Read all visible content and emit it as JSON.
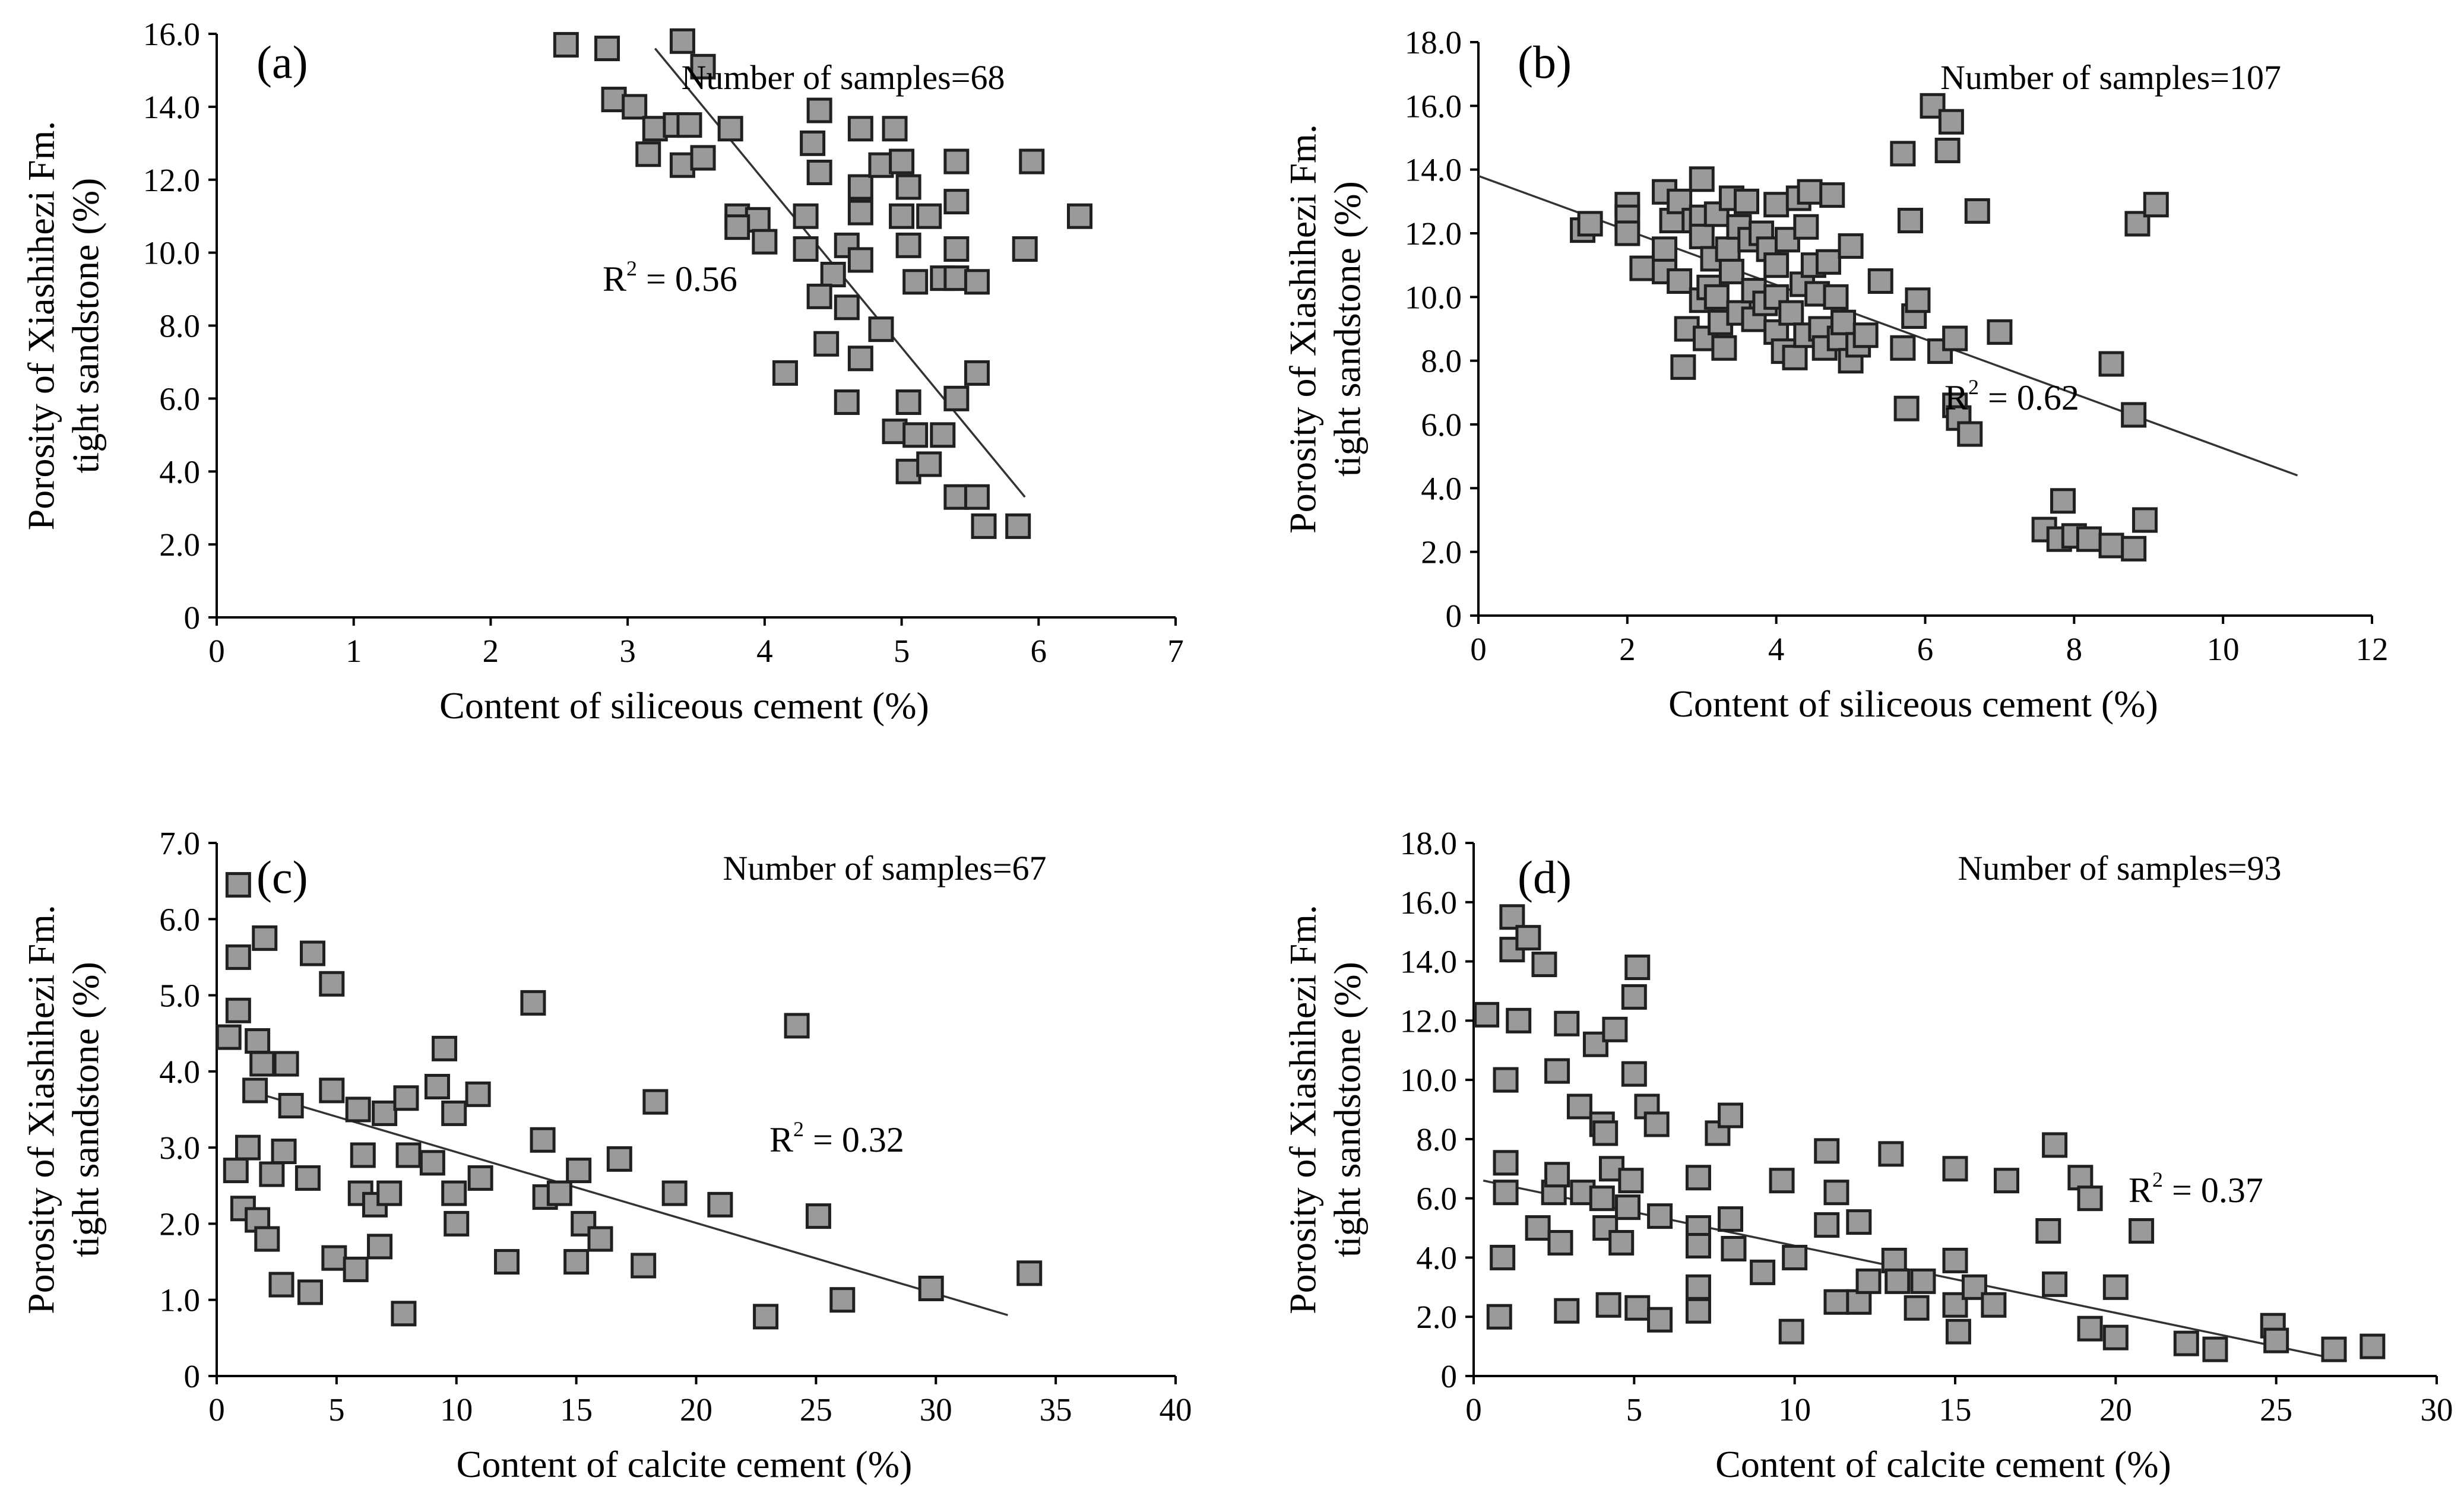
{
  "chart_data": [
    {
      "type": "scatter",
      "panel": "(a)",
      "xlabel": "Content of siliceous cement (%)",
      "ylabel_lines": [
        "Porosity of Xiashihezi Fm.",
        "tight sandstone (%)"
      ],
      "xlim": [
        0,
        7
      ],
      "ylim": [
        0,
        16
      ],
      "xticks": [
        "0",
        "1",
        "2",
        "3",
        "4",
        "5",
        "6",
        "7"
      ],
      "yticks": [
        "0",
        "2.0",
        "4.0",
        "6.0",
        "8.0",
        "10.0",
        "12.0",
        "14.0",
        "16.0"
      ],
      "annotation": "Number of samples=68",
      "r2_text": "R",
      "r2_sup": "2",
      "r2_value": " = 0.56",
      "trendline": [
        [
          3.2,
          15.6
        ],
        [
          5.9,
          3.3
        ]
      ],
      "points": [
        [
          2.55,
          15.7
        ],
        [
          2.85,
          15.6
        ],
        [
          3.4,
          15.8
        ],
        [
          3.55,
          15.1
        ],
        [
          2.9,
          14.2
        ],
        [
          3.05,
          14.0
        ],
        [
          3.2,
          13.4
        ],
        [
          3.35,
          13.5
        ],
        [
          3.45,
          13.5
        ],
        [
          3.75,
          13.4
        ],
        [
          3.15,
          12.7
        ],
        [
          3.4,
          12.4
        ],
        [
          3.55,
          12.6
        ],
        [
          3.8,
          11.0
        ],
        [
          3.95,
          10.9
        ],
        [
          3.8,
          10.7
        ],
        [
          4.0,
          10.3
        ],
        [
          4.3,
          11.0
        ],
        [
          4.35,
          13.0
        ],
        [
          4.4,
          13.9
        ],
        [
          4.4,
          12.2
        ],
        [
          4.3,
          10.1
        ],
        [
          4.6,
          10.2
        ],
        [
          4.5,
          9.4
        ],
        [
          4.4,
          8.8
        ],
        [
          4.45,
          7.5
        ],
        [
          4.6,
          8.5
        ],
        [
          4.7,
          9.8
        ],
        [
          4.7,
          11.1
        ],
        [
          4.7,
          11.8
        ],
        [
          4.7,
          13.4
        ],
        [
          4.85,
          12.4
        ],
        [
          4.95,
          13.4
        ],
        [
          5.0,
          12.5
        ],
        [
          5.0,
          11.0
        ],
        [
          5.05,
          11.8
        ],
        [
          5.2,
          11.0
        ],
        [
          5.05,
          10.2
        ],
        [
          5.1,
          9.2
        ],
        [
          5.3,
          9.3
        ],
        [
          5.4,
          9.3
        ],
        [
          5.4,
          10.1
        ],
        [
          5.4,
          11.4
        ],
        [
          5.4,
          12.5
        ],
        [
          5.55,
          9.2
        ],
        [
          4.85,
          7.9
        ],
        [
          4.7,
          7.1
        ],
        [
          4.6,
          5.9
        ],
        [
          4.15,
          6.7
        ],
        [
          5.05,
          5.9
        ],
        [
          5.4,
          6.0
        ],
        [
          5.55,
          6.7
        ],
        [
          4.95,
          5.1
        ],
        [
          5.1,
          5.0
        ],
        [
          5.3,
          5.0
        ],
        [
          5.05,
          4.0
        ],
        [
          5.2,
          4.2
        ],
        [
          5.4,
          3.3
        ],
        [
          5.55,
          3.3
        ],
        [
          5.6,
          2.5
        ],
        [
          5.85,
          2.5
        ],
        [
          5.9,
          10.1
        ],
        [
          5.95,
          12.5
        ],
        [
          6.3,
          11.0
        ]
      ]
    },
    {
      "type": "scatter",
      "panel": "(b)",
      "xlabel": "Content of siliceous cement (%)",
      "ylabel_lines": [
        "Porosity of Xiashihezi Fm.",
        "tight sandstone (%)"
      ],
      "xlim": [
        0,
        12
      ],
      "ylim": [
        0,
        18
      ],
      "xticks": [
        "0",
        "2",
        "4",
        "6",
        "8",
        "10",
        "12"
      ],
      "yticks": [
        "0",
        "2.0",
        "4.0",
        "6.0",
        "8.0",
        "10.0",
        "12.0",
        "14.0",
        "16.0",
        "18.0"
      ],
      "annotation": "Number of samples=107",
      "r2_text": "R",
      "r2_sup": "2",
      "r2_value": " = 0.62",
      "trendline": [
        [
          0,
          13.8
        ],
        [
          11.0,
          4.4
        ]
      ],
      "points": [
        [
          1.4,
          12.1
        ],
        [
          1.5,
          12.3
        ],
        [
          2.0,
          12.9
        ],
        [
          2.0,
          12.5
        ],
        [
          2.0,
          12.0
        ],
        [
          2.2,
          10.9
        ],
        [
          2.5,
          13.3
        ],
        [
          2.5,
          11.5
        ],
        [
          2.5,
          10.8
        ],
        [
          2.6,
          12.4
        ],
        [
          2.7,
          13.0
        ],
        [
          2.7,
          10.5
        ],
        [
          2.75,
          7.8
        ],
        [
          2.8,
          9.0
        ],
        [
          2.9,
          12.4
        ],
        [
          3.0,
          13.7
        ],
        [
          3.0,
          12.5
        ],
        [
          3.0,
          11.9
        ],
        [
          3.0,
          9.9
        ],
        [
          3.05,
          8.7
        ],
        [
          3.1,
          10.3
        ],
        [
          3.15,
          11.2
        ],
        [
          3.2,
          12.6
        ],
        [
          3.2,
          10.0
        ],
        [
          3.25,
          9.2
        ],
        [
          3.3,
          8.4
        ],
        [
          3.35,
          11.5
        ],
        [
          3.4,
          13.1
        ],
        [
          3.4,
          10.8
        ],
        [
          3.5,
          9.5
        ],
        [
          3.5,
          12.2
        ],
        [
          3.6,
          13.0
        ],
        [
          3.65,
          11.8
        ],
        [
          3.7,
          10.2
        ],
        [
          3.7,
          9.3
        ],
        [
          3.8,
          12.0
        ],
        [
          3.85,
          9.8
        ],
        [
          3.9,
          11.5
        ],
        [
          4.0,
          12.9
        ],
        [
          4.0,
          11.0
        ],
        [
          4.0,
          10.0
        ],
        [
          4.0,
          8.9
        ],
        [
          4.1,
          8.3
        ],
        [
          4.15,
          11.8
        ],
        [
          4.2,
          9.5
        ],
        [
          4.25,
          8.1
        ],
        [
          4.3,
          13.1
        ],
        [
          4.35,
          10.4
        ],
        [
          4.4,
          12.2
        ],
        [
          4.4,
          8.8
        ],
        [
          4.45,
          13.3
        ],
        [
          4.5,
          11.0
        ],
        [
          4.55,
          10.1
        ],
        [
          4.6,
          9.0
        ],
        [
          4.65,
          8.4
        ],
        [
          4.7,
          11.1
        ],
        [
          4.75,
          13.2
        ],
        [
          4.8,
          10.0
        ],
        [
          4.85,
          8.7
        ],
        [
          4.9,
          9.2
        ],
        [
          5.0,
          11.6
        ],
        [
          5.0,
          8.0
        ],
        [
          5.1,
          8.5
        ],
        [
          5.2,
          8.8
        ],
        [
          5.4,
          10.5
        ],
        [
          5.7,
          14.5
        ],
        [
          5.7,
          8.4
        ],
        [
          5.75,
          6.5
        ],
        [
          5.8,
          12.4
        ],
        [
          5.85,
          9.4
        ],
        [
          5.9,
          9.9
        ],
        [
          6.1,
          16.0
        ],
        [
          6.2,
          8.3
        ],
        [
          6.3,
          14.6
        ],
        [
          6.35,
          15.5
        ],
        [
          6.4,
          8.7
        ],
        [
          6.4,
          6.6
        ],
        [
          6.45,
          6.2
        ],
        [
          6.6,
          5.7
        ],
        [
          6.7,
          12.7
        ],
        [
          7.0,
          8.9
        ],
        [
          7.6,
          2.7
        ],
        [
          7.8,
          2.4
        ],
        [
          7.85,
          3.6
        ],
        [
          8.0,
          2.5
        ],
        [
          8.2,
          2.4
        ],
        [
          8.5,
          7.9
        ],
        [
          8.5,
          2.2
        ],
        [
          8.8,
          2.1
        ],
        [
          8.8,
          6.3
        ],
        [
          8.85,
          12.3
        ],
        [
          8.95,
          3.0
        ],
        [
          9.1,
          12.9
        ]
      ]
    },
    {
      "type": "scatter",
      "panel": "(c)",
      "xlabel": "Content of calcite cement (%)",
      "ylabel_lines": [
        "Porosity of Xiashihezi Fm.",
        "tight sandstone (%)"
      ],
      "xlim": [
        0,
        40
      ],
      "ylim": [
        0,
        7
      ],
      "xticks": [
        "0",
        "5",
        "10",
        "15",
        "20",
        "25",
        "30",
        "35",
        "40"
      ],
      "yticks": [
        "0",
        "1.0",
        "2.0",
        "3.0",
        "4.0",
        "5.0",
        "6.0",
        "7.0"
      ],
      "annotation": "Number of samples=67",
      "r2_text": "R",
      "r2_sup": "2",
      "r2_value": " = 0.32",
      "trendline": [
        [
          1.3,
          3.75
        ],
        [
          33.0,
          0.8
        ]
      ],
      "points": [
        [
          0.5,
          4.45
        ],
        [
          0.9,
          6.45
        ],
        [
          0.9,
          5.5
        ],
        [
          0.9,
          4.8
        ],
        [
          0.8,
          2.7
        ],
        [
          1.1,
          2.2
        ],
        [
          1.3,
          3.0
        ],
        [
          1.6,
          3.75
        ],
        [
          1.7,
          4.4
        ],
        [
          1.7,
          2.05
        ],
        [
          1.9,
          4.1
        ],
        [
          2.0,
          5.75
        ],
        [
          2.1,
          1.8
        ],
        [
          2.3,
          2.65
        ],
        [
          2.7,
          1.2
        ],
        [
          2.8,
          2.95
        ],
        [
          2.9,
          4.1
        ],
        [
          3.1,
          3.55
        ],
        [
          3.8,
          2.6
        ],
        [
          3.9,
          1.1
        ],
        [
          4.0,
          5.55
        ],
        [
          4.8,
          5.15
        ],
        [
          4.8,
          3.75
        ],
        [
          4.9,
          1.55
        ],
        [
          5.8,
          1.4
        ],
        [
          5.9,
          3.5
        ],
        [
          6.0,
          2.4
        ],
        [
          6.1,
          2.9
        ],
        [
          6.6,
          2.25
        ],
        [
          6.8,
          1.7
        ],
        [
          7.0,
          3.45
        ],
        [
          7.2,
          2.4
        ],
        [
          7.8,
          0.82
        ],
        [
          7.9,
          3.65
        ],
        [
          8.0,
          2.9
        ],
        [
          9.0,
          2.8
        ],
        [
          9.2,
          3.8
        ],
        [
          9.5,
          4.3
        ],
        [
          9.9,
          3.45
        ],
        [
          9.9,
          2.4
        ],
        [
          10.0,
          2.0
        ],
        [
          10.9,
          3.7
        ],
        [
          11.0,
          2.6
        ],
        [
          12.1,
          1.5
        ],
        [
          13.2,
          4.9
        ],
        [
          13.6,
          3.1
        ],
        [
          13.7,
          2.35
        ],
        [
          14.3,
          2.4
        ],
        [
          15.0,
          1.5
        ],
        [
          15.1,
          2.7
        ],
        [
          15.3,
          2.0
        ],
        [
          16.0,
          1.8
        ],
        [
          16.8,
          2.85
        ],
        [
          17.8,
          1.45
        ],
        [
          18.3,
          3.6
        ],
        [
          19.1,
          2.4
        ],
        [
          21.0,
          2.25
        ],
        [
          22.9,
          0.78
        ],
        [
          24.2,
          4.6
        ],
        [
          25.1,
          2.1
        ],
        [
          26.1,
          1.0
        ],
        [
          29.8,
          1.15
        ],
        [
          33.9,
          1.35
        ]
      ]
    },
    {
      "type": "scatter",
      "panel": "(d)",
      "xlabel": "Content of calcite cement (%)",
      "ylabel_lines": [
        "Porosity of Xiashihezi Fm.",
        "tight sandstone (%)"
      ],
      "xlim": [
        0,
        30
      ],
      "ylim": [
        0,
        18
      ],
      "xticks": [
        "0",
        "5",
        "10",
        "15",
        "20",
        "25",
        "30"
      ],
      "yticks": [
        "0",
        "2.0",
        "4.0",
        "6.0",
        "8.0",
        "10.0",
        "12.0",
        "14.0",
        "16.0",
        "18.0"
      ],
      "annotation": "Number of samples=93",
      "r2_text": "R",
      "r2_sup": "2",
      "r2_value": " = 0.37",
      "trendline": [
        [
          0.3,
          6.6
        ],
        [
          27.2,
          0.5
        ]
      ],
      "points": [
        [
          0.4,
          12.2
        ],
        [
          0.8,
          2.0
        ],
        [
          0.9,
          4.0
        ],
        [
          1.0,
          10.0
        ],
        [
          1.0,
          7.2
        ],
        [
          1.0,
          6.2
        ],
        [
          1.2,
          15.5
        ],
        [
          1.2,
          14.4
        ],
        [
          1.4,
          12.0
        ],
        [
          1.7,
          14.8
        ],
        [
          2.0,
          5.0
        ],
        [
          2.2,
          13.9
        ],
        [
          2.5,
          6.2
        ],
        [
          2.6,
          6.8
        ],
        [
          2.6,
          10.3
        ],
        [
          2.7,
          4.5
        ],
        [
          2.9,
          11.9
        ],
        [
          2.9,
          2.2
        ],
        [
          3.3,
          9.1
        ],
        [
          3.4,
          6.2
        ],
        [
          3.8,
          11.2
        ],
        [
          4.0,
          8.5
        ],
        [
          4.0,
          6.0
        ],
        [
          4.1,
          8.2
        ],
        [
          4.1,
          5.0
        ],
        [
          4.2,
          2.4
        ],
        [
          4.3,
          7.0
        ],
        [
          4.4,
          11.7
        ],
        [
          4.6,
          4.5
        ],
        [
          4.8,
          5.7
        ],
        [
          4.9,
          6.6
        ],
        [
          5.0,
          12.8
        ],
        [
          5.0,
          10.2
        ],
        [
          5.1,
          13.8
        ],
        [
          5.1,
          2.3
        ],
        [
          5.4,
          9.1
        ],
        [
          5.7,
          8.5
        ],
        [
          5.8,
          5.4
        ],
        [
          5.8,
          1.9
        ],
        [
          7.0,
          6.7
        ],
        [
          7.0,
          5.0
        ],
        [
          7.0,
          4.4
        ],
        [
          7.0,
          3.0
        ],
        [
          7.0,
          2.2
        ],
        [
          7.6,
          8.2
        ],
        [
          8.0,
          8.8
        ],
        [
          8.0,
          5.3
        ],
        [
          8.1,
          4.3
        ],
        [
          9.0,
          3.5
        ],
        [
          9.6,
          6.6
        ],
        [
          9.9,
          1.5
        ],
        [
          10.0,
          4.0
        ],
        [
          11.0,
          7.6
        ],
        [
          11.0,
          5.1
        ],
        [
          11.3,
          6.2
        ],
        [
          11.3,
          2.5
        ],
        [
          12.0,
          2.5
        ],
        [
          12.0,
          5.2
        ],
        [
          12.3,
          3.2
        ],
        [
          13.0,
          7.5
        ],
        [
          13.1,
          3.9
        ],
        [
          13.2,
          3.2
        ],
        [
          13.8,
          2.3
        ],
        [
          14.0,
          3.2
        ],
        [
          15.0,
          7.0
        ],
        [
          15.0,
          3.9
        ],
        [
          15.0,
          2.4
        ],
        [
          15.1,
          1.5
        ],
        [
          15.6,
          3.0
        ],
        [
          16.2,
          2.4
        ],
        [
          16.6,
          6.6
        ],
        [
          17.9,
          4.9
        ],
        [
          18.1,
          7.8
        ],
        [
          18.1,
          3.1
        ],
        [
          18.9,
          6.7
        ],
        [
          19.2,
          6.0
        ],
        [
          19.2,
          1.6
        ],
        [
          20.0,
          3.0
        ],
        [
          20.0,
          1.3
        ],
        [
          20.8,
          4.9
        ],
        [
          22.2,
          1.1
        ],
        [
          23.1,
          0.9
        ],
        [
          24.9,
          1.7
        ],
        [
          25.0,
          1.2
        ],
        [
          26.8,
          0.9
        ],
        [
          28.0,
          1.0
        ]
      ]
    }
  ]
}
